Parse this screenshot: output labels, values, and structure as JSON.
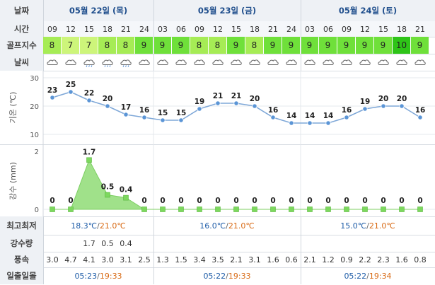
{
  "labels": {
    "date": "날짜",
    "time": "시간",
    "golf": "골프지수",
    "weather": "날씨",
    "temp_axis": "기온 (℃)",
    "precip_axis": "강수 (mm)",
    "minmax": "최고최저",
    "precip": "강수량",
    "wind": "풍속",
    "sun": "일출일몰"
  },
  "dates": [
    "05월 22일 (목)",
    "05월 23일 (금)",
    "05월 24일 (토)"
  ],
  "times": [
    "09",
    "12",
    "15",
    "18",
    "21",
    "24",
    "03",
    "06",
    "09",
    "12",
    "15",
    "18",
    "21",
    "24",
    "03",
    "06",
    "09",
    "12",
    "15",
    "18",
    "21"
  ],
  "golf_index": [
    8,
    7,
    7,
    8,
    8,
    9,
    9,
    9,
    8,
    8,
    9,
    8,
    9,
    9,
    9,
    9,
    9,
    9,
    9,
    10,
    9
  ],
  "golf_colors": {
    "7": "#cdf57a",
    "8": "#a6ec55",
    "9": "#6fe03a",
    "10": "#2ec418"
  },
  "weather_icons": [
    "cloud-icon",
    "cloud-icon",
    "rain-cloud-icon",
    "rain-cloud-icon",
    "rain-cloud-icon",
    "cloud-icon",
    "cloud-icon",
    "cloud-icon",
    "cloud-icon",
    "cloud-icon",
    "cloud-icon",
    "cloud-icon",
    "cloud-icon",
    "cloud-icon",
    "cloud-icon",
    "cloud-icon",
    "cloud-icon",
    "cloud-icon",
    "cloud-icon",
    "cloud-icon",
    "cloud-icon"
  ],
  "chart_data": [
    {
      "type": "line",
      "ylabel": "기온 (℃)",
      "ylim": [
        10,
        30
      ],
      "yticks": [
        10,
        20,
        30
      ],
      "x": [
        "09",
        "12",
        "15",
        "18",
        "21",
        "24",
        "03",
        "06",
        "09",
        "12",
        "15",
        "18",
        "21",
        "24",
        "03",
        "06",
        "09",
        "12",
        "15",
        "18",
        "21"
      ],
      "values": [
        23,
        25,
        22,
        20,
        17,
        16,
        15,
        15,
        19,
        21,
        21,
        20,
        16,
        14,
        14,
        14,
        16,
        19,
        20,
        20,
        16
      ],
      "color": "#7fa8d8"
    },
    {
      "type": "area",
      "ylabel": "강수 (mm)",
      "ylim": [
        0,
        2
      ],
      "yticks": [
        0,
        2
      ],
      "x": [
        "09",
        "12",
        "15",
        "18",
        "21",
        "24",
        "03",
        "06",
        "09",
        "12",
        "15",
        "18",
        "21",
        "24",
        "03",
        "06",
        "09",
        "12",
        "15",
        "18",
        "21"
      ],
      "values": [
        0,
        0,
        1.7,
        0.5,
        0.4,
        0,
        0,
        0,
        0,
        0,
        0,
        0,
        0,
        0,
        0,
        0,
        0,
        0,
        0,
        0,
        0
      ],
      "color": "#8fdc76"
    }
  ],
  "minmax": [
    {
      "min": "18.3℃",
      "sep": "/",
      "max": "21.0℃"
    },
    {
      "min": "16.0℃",
      "sep": "/",
      "max": "21.0℃"
    },
    {
      "min": "15.0℃",
      "sep": "/",
      "max": "21.0℃"
    }
  ],
  "precip_values": [
    "",
    "",
    "1.7",
    "0.5",
    "0.4",
    "",
    "",
    "",
    "",
    "",
    "",
    "",
    "",
    "",
    "",
    "",
    "",
    "",
    "",
    "",
    ""
  ],
  "wind": [
    "3.0",
    "4.7",
    "4.1",
    "3.0",
    "3.1",
    "2.5",
    "1.3",
    "1.5",
    "3.4",
    "3.5",
    "2.1",
    "3.1",
    "1.6",
    "0.6",
    "2.1",
    "1.2",
    "0.9",
    "2.2",
    "2.3",
    "1.6",
    "0.8"
  ],
  "sun": [
    {
      "rise": "05:23",
      "sep": "/",
      "set": "19:33"
    },
    {
      "rise": "05:22",
      "sep": "/",
      "set": "19:33"
    },
    {
      "rise": "05:22",
      "sep": "/",
      "set": "19:34"
    }
  ]
}
